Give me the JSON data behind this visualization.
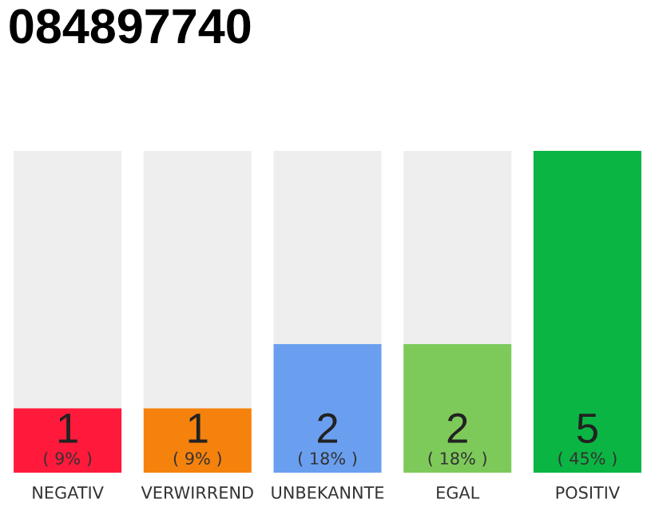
{
  "chart_data": {
    "type": "bar",
    "title": "084897740",
    "stacked": true,
    "grid": false,
    "legend": false,
    "categories": [
      "NEGATIV",
      "VERWIRREND",
      "UNBEKANNTE",
      "EGAL",
      "POSITIV"
    ],
    "series": [
      {
        "colors": [
          "#ff1a3c",
          "#f5820d",
          "#6a9ff0",
          "#7dca5a",
          "#0bb543"
        ],
        "values": [
          1,
          1,
          2,
          2,
          5
        ],
        "value_labels": [
          "1",
          "1",
          "2",
          "2",
          "5"
        ]
      },
      {
        "color": "#eeeeee",
        "values": [
          4,
          4,
          3,
          3,
          0
        ]
      }
    ],
    "annotations": [
      "( 9% )",
      "( 9% )",
      "( 18% )",
      "( 18% )",
      "( 45% )"
    ]
  }
}
